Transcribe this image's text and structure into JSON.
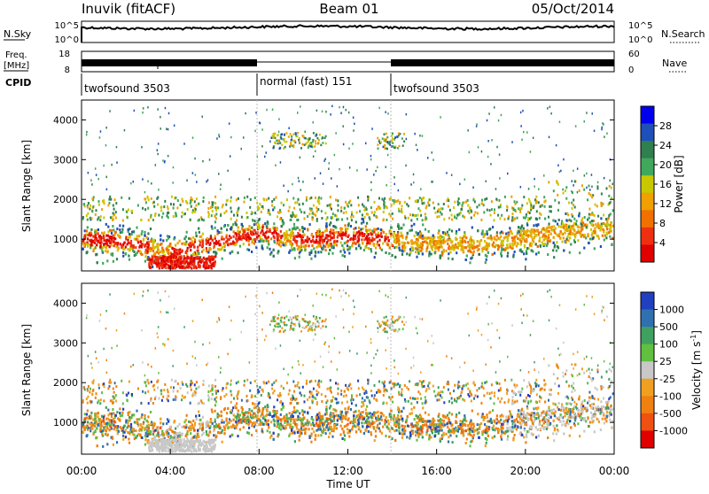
{
  "header": {
    "station": "Inuvik (fitACF)",
    "beam": "Beam 01",
    "date": "05/Oct/2014"
  },
  "panels": {
    "nsky_label": "N.Sky",
    "nsky_ticks": [
      "10^5",
      "10^0"
    ],
    "nsearch_label": "N.Search",
    "nsearch_ticks": [
      "10^5",
      "10^0"
    ],
    "freq_label_1": "Freq.",
    "freq_label_2": "[MHz]",
    "freq_ticks": [
      "18",
      "8"
    ],
    "nave_label": "Nave",
    "nave_ticks": [
      "60",
      "0"
    ],
    "cpid_label": "CPID",
    "cpid_segments": [
      {
        "label": "twofsound 3503",
        "start": 0,
        "end": 8
      },
      {
        "label": "normal (fast) 151",
        "start": 8,
        "end": 14
      },
      {
        "label": "twofsound 3503",
        "start": 14,
        "end": 24
      }
    ]
  },
  "chart_data": [
    {
      "type": "heatmap",
      "name": "Power",
      "ylabel": "Slant Range [km]",
      "xlim": [
        0,
        24
      ],
      "ylim": [
        200,
        4500
      ],
      "yticks": [
        "1000",
        "2000",
        "3000",
        "4000"
      ],
      "colorbar_label": "Power [dB]",
      "colorbar_ticks": [
        "28",
        "24",
        "20",
        "16",
        "12",
        "8",
        "4"
      ],
      "colors": [
        "#0000ee",
        "#1f4fb8",
        "#2f7f4f",
        "#3fa85a",
        "#c8c800",
        "#f0a000",
        "#f07000",
        "#ee3010",
        "#e00000"
      ],
      "echo_band": [
        {
          "t": 0,
          "r": 1050
        },
        {
          "t": 2,
          "r": 950
        },
        {
          "t": 4,
          "r": 700
        },
        {
          "t": 6,
          "r": 950
        },
        {
          "t": 8,
          "r": 1200
        },
        {
          "t": 10,
          "r": 1000
        },
        {
          "t": 12,
          "r": 1100
        },
        {
          "t": 14,
          "r": 1000
        },
        {
          "t": 16,
          "r": 900
        },
        {
          "t": 18,
          "r": 900
        },
        {
          "t": 20,
          "r": 1050
        },
        {
          "t": 22,
          "r": 1250
        },
        {
          "t": 24,
          "r": 1300
        }
      ]
    },
    {
      "type": "heatmap",
      "name": "Velocity",
      "ylabel": "Slant Range [km]",
      "xlabel": "Time UT",
      "xlim": [
        0,
        24
      ],
      "ylim": [
        200,
        4500
      ],
      "yticks": [
        "1000",
        "2000",
        "3000",
        "4000"
      ],
      "xticks": [
        "00:00",
        "04:00",
        "08:00",
        "12:00",
        "16:00",
        "20:00",
        "00:00"
      ],
      "colorbar_label": "Velocity [m s^-1]",
      "colorbar_ticks": [
        "1000",
        "500",
        "100",
        "25",
        "-25",
        "-100",
        "-500",
        "-1000"
      ],
      "colors": [
        "#2040c0",
        "#3070b0",
        "#3fa060",
        "#60c040",
        "#c8c8c8",
        "#f0a020",
        "#f08010",
        "#f05010",
        "#e00000"
      ]
    }
  ]
}
